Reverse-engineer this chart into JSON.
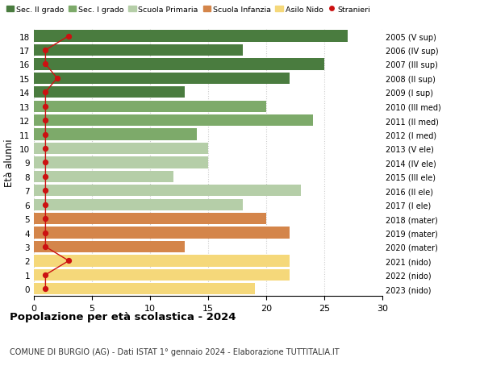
{
  "ages": [
    18,
    17,
    16,
    15,
    14,
    13,
    12,
    11,
    10,
    9,
    8,
    7,
    6,
    5,
    4,
    3,
    2,
    1,
    0
  ],
  "right_labels": [
    "2005 (V sup)",
    "2006 (IV sup)",
    "2007 (III sup)",
    "2008 (II sup)",
    "2009 (I sup)",
    "2010 (III med)",
    "2011 (II med)",
    "2012 (I med)",
    "2013 (V ele)",
    "2014 (IV ele)",
    "2015 (III ele)",
    "2016 (II ele)",
    "2017 (I ele)",
    "2018 (mater)",
    "2019 (mater)",
    "2020 (mater)",
    "2021 (nido)",
    "2022 (nido)",
    "2023 (nido)"
  ],
  "bar_values": [
    27,
    18,
    25,
    22,
    13,
    20,
    24,
    14,
    15,
    15,
    12,
    23,
    18,
    20,
    22,
    13,
    22,
    22,
    19
  ],
  "bar_colors": [
    "#4a7c3f",
    "#4a7c3f",
    "#4a7c3f",
    "#4a7c3f",
    "#4a7c3f",
    "#7daa6a",
    "#7daa6a",
    "#7daa6a",
    "#b5cea8",
    "#b5cea8",
    "#b5cea8",
    "#b5cea8",
    "#b5cea8",
    "#d4854a",
    "#d4854a",
    "#d4854a",
    "#f5d87a",
    "#f5d87a",
    "#f5d87a"
  ],
  "stranieri_values": [
    3,
    1,
    1,
    2,
    1,
    1,
    1,
    1,
    1,
    1,
    1,
    1,
    1,
    1,
    1,
    1,
    3,
    1,
    1
  ],
  "xlim": [
    0,
    30
  ],
  "ylabel": "Età alunni",
  "title": "Popolazione per età scolastica - 2024",
  "subtitle": "COMUNE DI BURGIO (AG) - Dati ISTAT 1° gennaio 2024 - Elaborazione TUTTITALIA.IT",
  "legend_labels": [
    "Sec. II grado",
    "Sec. I grado",
    "Scuola Primaria",
    "Scuola Infanzia",
    "Asilo Nido",
    "Stranieri"
  ],
  "legend_colors": [
    "#4a7c3f",
    "#7daa6a",
    "#b5cea8",
    "#d4854a",
    "#f5d87a",
    "#cc1111"
  ],
  "bg_color": "#ffffff",
  "bar_height": 0.82,
  "grid_color": "#cccccc",
  "stranieri_color": "#cc1111"
}
